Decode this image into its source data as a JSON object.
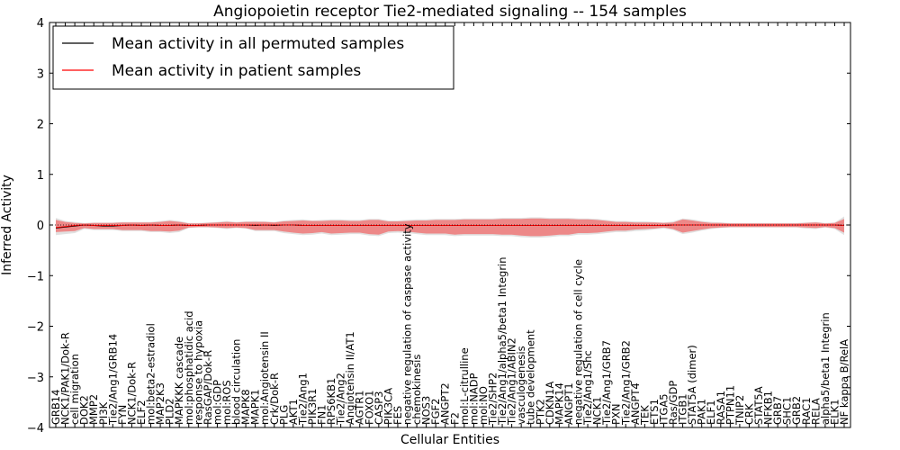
{
  "chart_data": {
    "type": "line",
    "title": "Angiopoietin receptor Tie2-mediated signaling -- 154 samples",
    "xlabel": "Cellular Entities",
    "ylabel": "Inferred Activity",
    "ylim": [
      -4,
      4
    ],
    "yticks": [
      -4,
      -3,
      -2,
      -1,
      0,
      1,
      2,
      3,
      4
    ],
    "ytick_labels": [
      "−4",
      "−3",
      "−2",
      "−1",
      "0",
      "1",
      "2",
      "3",
      "4"
    ],
    "legend_position": "top-left",
    "categories": [
      "GRB14",
      "NCK1/PAK1/Dok-R",
      "cell migration",
      "DOK2",
      "MMP2",
      "PI3K",
      "Tie2/Ang1/GRB14",
      "FYN",
      "NCK1/Dok-R",
      "ELF2",
      "mol:beta2-estradiol",
      "MAP2K3",
      "PLD2",
      "MAPKKK cascade",
      "mol:phosphatidic acid",
      "response to hypoxia",
      "RasGAP/Dok-R",
      "mol:GDP",
      "mol:ROS",
      "blood circulation",
      "MAPK8",
      "MAPK1",
      "mol:Angiotensin II",
      "Crk/Dok-R",
      "PLG",
      "AKT1",
      "Tie2/Ang1",
      "PIK3R1",
      "FN1",
      "RPS6KB1",
      "Tie2/Ang2",
      "Angiotensin II/AT1",
      "AGTR1",
      "FOXO1",
      "CASP3",
      "PIK3CA",
      "FES",
      "negative regulation of caspase activity",
      "chemokinesis",
      "NOS3",
      "FGF2",
      "ANGPT2",
      "F2",
      "mol:L-citrulline",
      "mol:NADP",
      "mol:NO",
      "Tie2/SHP2",
      "Tie2/Ang1/alpha5/beta1 Integrin",
      "Tie2/Ang1/ABIN2",
      "vasculogenesis",
      "tube development",
      "PTK2",
      "CDKN1A",
      "MAPK14",
      "ANGPT1",
      "negative regulation of cell cycle",
      "Tie2/Ang1/Shc",
      "NCK1",
      "Tie2/Ang1/GRB7",
      "PXN",
      "Tie2/Ang1/GRB2",
      "ANGPT4",
      "TEK",
      "ETS1",
      "ITGA5",
      "Ras/GDP",
      "ITGB1",
      "STAT5A (dimer)",
      "PAK1",
      "ELF1",
      "RASA1",
      "PTPN11",
      "TNIP2",
      "CRK",
      "STAT5A",
      "NFKB1",
      "GRB7",
      "SHC1",
      "GRB2",
      "RAC1",
      "RELA",
      "alpha5/beta1 Integrin",
      "ELK1",
      "NF kappa B/RelA"
    ],
    "series": [
      {
        "name": "Mean activity in all permuted samples",
        "color": "#000000",
        "band_color": "#c8c8c8",
        "values": [
          -0.06,
          -0.04,
          -0.02,
          0.0,
          -0.01,
          -0.02,
          -0.02,
          -0.01,
          0.0,
          -0.01,
          0.0,
          -0.01,
          -0.01,
          0.0,
          -0.01,
          -0.01,
          0.0,
          0.0,
          0.0,
          0.0,
          0.0,
          -0.01,
          0.0,
          -0.01,
          0.0,
          0.0,
          -0.01,
          -0.01,
          -0.01,
          -0.01,
          -0.01,
          -0.01,
          -0.01,
          -0.01,
          -0.01,
          -0.01,
          -0.01,
          -0.01,
          -0.01,
          -0.01,
          -0.01,
          -0.01,
          -0.01,
          -0.01,
          -0.01,
          -0.01,
          -0.01,
          -0.01,
          -0.01,
          -0.01,
          -0.01,
          -0.01,
          -0.01,
          -0.01,
          -0.01,
          -0.01,
          -0.01,
          -0.01,
          -0.01,
          -0.01,
          -0.01,
          -0.01,
          -0.01,
          -0.01,
          -0.01,
          0.0,
          0.0,
          0.0,
          0.0,
          0.0,
          0.0,
          0.0,
          0.0,
          0.0,
          0.0,
          0.0,
          0.0,
          0.0,
          0.0,
          0.0,
          0.0,
          0.0,
          0.0,
          -0.01
        ],
        "upper": [
          0.14,
          0.08,
          0.06,
          0.04,
          0.05,
          0.05,
          0.05,
          0.06,
          0.06,
          0.06,
          0.06,
          0.08,
          0.1,
          0.08,
          0.04,
          0.04,
          0.05,
          0.06,
          0.08,
          0.06,
          0.07,
          0.08,
          0.07,
          0.06,
          0.09,
          0.1,
          0.11,
          0.09,
          0.1,
          0.11,
          0.11,
          0.1,
          0.1,
          0.12,
          0.12,
          0.09,
          0.09,
          0.1,
          0.11,
          0.11,
          0.12,
          0.12,
          0.12,
          0.13,
          0.13,
          0.13,
          0.13,
          0.14,
          0.14,
          0.14,
          0.15,
          0.15,
          0.14,
          0.14,
          0.14,
          0.13,
          0.13,
          0.12,
          0.1,
          0.08,
          0.08,
          0.07,
          0.07,
          0.06,
          0.05,
          0.07,
          0.13,
          0.11,
          0.08,
          0.06,
          0.05,
          0.04,
          0.04,
          0.04,
          0.04,
          0.04,
          0.04,
          0.04,
          0.04,
          0.05,
          0.06,
          0.04,
          0.05,
          0.17
        ],
        "lower": [
          -0.2,
          -0.18,
          -0.16,
          -0.08,
          -0.1,
          -0.1,
          -0.1,
          -0.12,
          -0.12,
          -0.12,
          -0.14,
          -0.14,
          -0.16,
          -0.14,
          -0.06,
          -0.05,
          -0.05,
          -0.06,
          -0.08,
          -0.06,
          -0.07,
          -0.12,
          -0.12,
          -0.12,
          -0.16,
          -0.18,
          -0.2,
          -0.19,
          -0.17,
          -0.2,
          -0.19,
          -0.18,
          -0.18,
          -0.21,
          -0.22,
          -0.16,
          -0.15,
          -0.16,
          -0.18,
          -0.2,
          -0.2,
          -0.2,
          -0.22,
          -0.21,
          -0.21,
          -0.21,
          -0.21,
          -0.22,
          -0.22,
          -0.24,
          -0.25,
          -0.25,
          -0.24,
          -0.22,
          -0.22,
          -0.19,
          -0.19,
          -0.18,
          -0.16,
          -0.14,
          -0.14,
          -0.12,
          -0.11,
          -0.09,
          -0.07,
          -0.1,
          -0.18,
          -0.15,
          -0.11,
          -0.08,
          -0.06,
          -0.05,
          -0.05,
          -0.05,
          -0.05,
          -0.05,
          -0.05,
          -0.05,
          -0.05,
          -0.07,
          -0.08,
          -0.05,
          -0.08,
          -0.2
        ]
      },
      {
        "name": "Mean activity in patient samples",
        "color": "#ff0000",
        "band_color": "#ee7878",
        "values": [
          -0.05,
          -0.03,
          -0.01,
          0.0,
          -0.01,
          -0.01,
          -0.01,
          -0.01,
          0.0,
          -0.01,
          0.0,
          -0.01,
          -0.01,
          0.0,
          -0.01,
          -0.01,
          0.0,
          0.0,
          0.0,
          0.0,
          0.0,
          0.0,
          0.0,
          0.0,
          0.0,
          0.0,
          -0.01,
          -0.01,
          -0.01,
          -0.01,
          -0.01,
          -0.01,
          -0.01,
          -0.01,
          -0.01,
          -0.01,
          -0.01,
          -0.01,
          -0.01,
          -0.01,
          -0.01,
          -0.01,
          -0.01,
          -0.01,
          -0.01,
          -0.01,
          -0.01,
          -0.01,
          -0.01,
          -0.01,
          -0.01,
          -0.01,
          -0.01,
          -0.01,
          -0.01,
          -0.01,
          -0.01,
          -0.01,
          -0.01,
          -0.01,
          -0.01,
          -0.01,
          -0.01,
          -0.01,
          -0.01,
          0.0,
          0.0,
          0.0,
          0.0,
          0.0,
          0.0,
          0.0,
          0.0,
          0.0,
          0.0,
          0.0,
          0.0,
          0.0,
          0.0,
          0.0,
          0.0,
          0.0,
          0.0,
          -0.01
        ],
        "upper": [
          0.1,
          0.06,
          0.04,
          0.03,
          0.04,
          0.04,
          0.04,
          0.05,
          0.05,
          0.05,
          0.05,
          0.06,
          0.08,
          0.06,
          0.03,
          0.03,
          0.04,
          0.05,
          0.06,
          0.05,
          0.06,
          0.06,
          0.06,
          0.05,
          0.07,
          0.08,
          0.09,
          0.08,
          0.08,
          0.09,
          0.09,
          0.08,
          0.08,
          0.1,
          0.1,
          0.07,
          0.07,
          0.08,
          0.09,
          0.09,
          0.1,
          0.1,
          0.1,
          0.11,
          0.11,
          0.11,
          0.11,
          0.12,
          0.12,
          0.12,
          0.13,
          0.13,
          0.12,
          0.12,
          0.12,
          0.11,
          0.11,
          0.1,
          0.08,
          0.06,
          0.06,
          0.05,
          0.05,
          0.05,
          0.04,
          0.05,
          0.11,
          0.09,
          0.06,
          0.04,
          0.04,
          0.03,
          0.03,
          0.03,
          0.03,
          0.03,
          0.03,
          0.03,
          0.03,
          0.04,
          0.05,
          0.03,
          0.04,
          0.12
        ],
        "lower": [
          -0.14,
          -0.13,
          -0.12,
          -0.06,
          -0.08,
          -0.08,
          -0.08,
          -0.1,
          -0.1,
          -0.1,
          -0.12,
          -0.12,
          -0.13,
          -0.11,
          -0.05,
          -0.04,
          -0.04,
          -0.05,
          -0.06,
          -0.05,
          -0.06,
          -0.1,
          -0.1,
          -0.1,
          -0.13,
          -0.15,
          -0.17,
          -0.16,
          -0.14,
          -0.17,
          -0.16,
          -0.15,
          -0.15,
          -0.18,
          -0.19,
          -0.13,
          -0.12,
          -0.13,
          -0.15,
          -0.17,
          -0.17,
          -0.17,
          -0.19,
          -0.18,
          -0.18,
          -0.18,
          -0.18,
          -0.19,
          -0.19,
          -0.21,
          -0.22,
          -0.22,
          -0.21,
          -0.19,
          -0.19,
          -0.16,
          -0.16,
          -0.15,
          -0.13,
          -0.11,
          -0.11,
          -0.09,
          -0.08,
          -0.07,
          -0.05,
          -0.08,
          -0.15,
          -0.12,
          -0.09,
          -0.06,
          -0.05,
          -0.04,
          -0.04,
          -0.04,
          -0.04,
          -0.04,
          -0.04,
          -0.04,
          -0.04,
          -0.05,
          -0.06,
          -0.04,
          -0.06,
          -0.15
        ]
      }
    ]
  }
}
